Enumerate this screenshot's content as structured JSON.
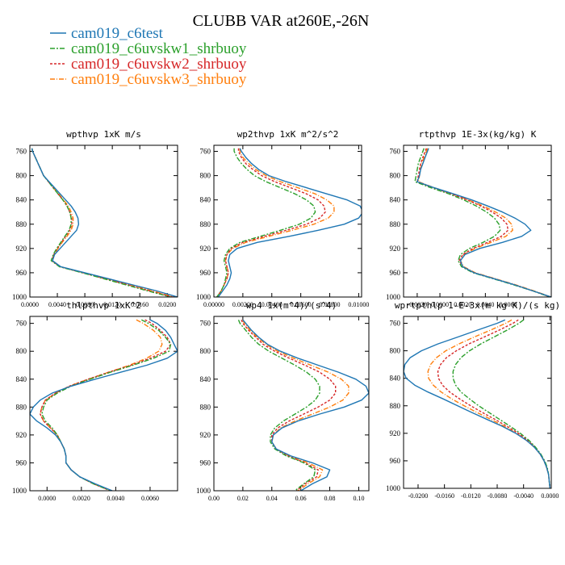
{
  "title": "CLUBB VAR at260E,-26N",
  "colors": {
    "cam019_c6test": "#1f77b4",
    "cam019_c6uvskw1_shrbuoy": "#2ca02c",
    "cam019_c6uvskw2_shrbuoy": "#d62728",
    "cam019_c6uvskw3_shrbuoy": "#ff7f0e"
  },
  "chart_data": [
    {
      "type": "line",
      "title": "wpthvp  1xK m/s",
      "ylim": [
        1000,
        750
      ],
      "y_ticks": [
        "760",
        "800",
        "840",
        "880",
        "920",
        "960",
        "1000"
      ],
      "xlim": [
        0,
        0.0215
      ],
      "x_ticks": [
        "0.0000",
        "0.0040",
        "0.0080",
        "0.0120",
        "0.0160",
        "0.0200"
      ],
      "y": [
        755,
        760,
        770,
        780,
        790,
        800,
        810,
        820,
        830,
        840,
        850,
        860,
        870,
        880,
        890,
        900,
        910,
        920,
        930,
        940,
        950,
        960,
        970,
        980,
        990,
        1000
      ],
      "series": [
        {
          "name": "cam019_c6test",
          "values": [
            0.0003,
            0.0004,
            0.0008,
            0.0012,
            0.0016,
            0.002,
            0.0028,
            0.0036,
            0.0044,
            0.0052,
            0.006,
            0.0066,
            0.007,
            0.0071,
            0.0068,
            0.006,
            0.0052,
            0.0044,
            0.0036,
            0.0033,
            0.0045,
            0.008,
            0.0115,
            0.015,
            0.0185,
            0.0215
          ]
        },
        {
          "name": "cam019_c6uvskw1_shrbuoy",
          "values": [
            0.0003,
            0.0004,
            0.0008,
            0.0012,
            0.0016,
            0.002,
            0.0027,
            0.0034,
            0.0041,
            0.0048,
            0.0054,
            0.0058,
            0.006,
            0.006,
            0.0057,
            0.0051,
            0.0045,
            0.0039,
            0.0034,
            0.0031,
            0.0043,
            0.0076,
            0.0108,
            0.014,
            0.0172,
            0.0205
          ]
        },
        {
          "name": "cam019_c6uvskw2_shrbuoy",
          "values": [
            0.0003,
            0.0004,
            0.0008,
            0.0012,
            0.0016,
            0.002,
            0.0027,
            0.0034,
            0.0041,
            0.0048,
            0.0054,
            0.0058,
            0.0061,
            0.0061,
            0.0058,
            0.0052,
            0.0046,
            0.004,
            0.0035,
            0.0032,
            0.0044,
            0.0077,
            0.011,
            0.0143,
            0.0175,
            0.0208
          ]
        },
        {
          "name": "cam019_c6uvskw3_shrbuoy",
          "values": [
            0.0003,
            0.0004,
            0.0008,
            0.0012,
            0.0016,
            0.002,
            0.0027,
            0.0034,
            0.0042,
            0.0049,
            0.0056,
            0.006,
            0.0063,
            0.0063,
            0.006,
            0.0054,
            0.0047,
            0.0041,
            0.0035,
            0.0032,
            0.0044,
            0.0078,
            0.0112,
            0.0146,
            0.0178,
            0.021
          ]
        }
      ]
    },
    {
      "type": "line",
      "title": "wp2thvp  1xK m^2/s^2",
      "ylim": [
        1000,
        750
      ],
      "y_ticks": [
        "760",
        "800",
        "840",
        "880",
        "920",
        "960",
        "1000"
      ],
      "xlim": [
        0,
        0.0102
      ],
      "x_ticks": [
        "0.00000",
        "0.00200",
        "0.00400",
        "0.00600",
        "0.00800",
        "0.01000"
      ],
      "y": [
        755,
        760,
        770,
        780,
        790,
        800,
        810,
        820,
        830,
        840,
        850,
        860,
        870,
        880,
        890,
        900,
        910,
        920,
        930,
        940,
        950,
        960,
        970,
        980,
        990,
        1000
      ],
      "series": [
        {
          "name": "cam019_c6test",
          "values": [
            0.0018,
            0.0019,
            0.0022,
            0.0026,
            0.0031,
            0.0038,
            0.005,
            0.0064,
            0.0078,
            0.0092,
            0.0101,
            0.0103,
            0.01,
            0.009,
            0.0072,
            0.0052,
            0.003,
            0.0016,
            0.0011,
            0.001,
            0.0011,
            0.0012,
            0.0011,
            0.0009,
            0.0006,
            0.0003
          ]
        },
        {
          "name": "cam019_c6uvskw1_shrbuoy",
          "values": [
            0.0014,
            0.0014,
            0.0016,
            0.0019,
            0.0023,
            0.0028,
            0.0036,
            0.0046,
            0.0056,
            0.0064,
            0.0069,
            0.007,
            0.0067,
            0.0059,
            0.0046,
            0.0032,
            0.0018,
            0.0011,
            0.0008,
            0.0007,
            0.0008,
            0.0009,
            0.0008,
            0.0007,
            0.0005,
            0.0002
          ]
        },
        {
          "name": "cam019_c6uvskw2_shrbuoy",
          "values": [
            0.0017,
            0.0017,
            0.0019,
            0.0022,
            0.0027,
            0.0033,
            0.0042,
            0.0053,
            0.0064,
            0.0072,
            0.0076,
            0.0077,
            0.0073,
            0.0064,
            0.005,
            0.0035,
            0.002,
            0.0012,
            0.0009,
            0.0008,
            0.0009,
            0.001,
            0.0009,
            0.0007,
            0.0005,
            0.0002
          ]
        },
        {
          "name": "cam019_c6uvskw3_shrbuoy",
          "values": [
            0.0018,
            0.0018,
            0.002,
            0.0024,
            0.0029,
            0.0036,
            0.0046,
            0.0058,
            0.007,
            0.0078,
            0.0083,
            0.0083,
            0.0079,
            0.0069,
            0.0054,
            0.0038,
            0.0022,
            0.0013,
            0.0009,
            0.0008,
            0.0009,
            0.001,
            0.0009,
            0.0007,
            0.0005,
            0.0002
          ]
        }
      ]
    },
    {
      "type": "line",
      "title": "rtpthvp  1E-3x(kg/kg) K",
      "ylim": [
        1000,
        750
      ],
      "y_ticks": [
        "760",
        "800",
        "840",
        "880",
        "920",
        "960",
        "1000"
      ],
      "xlim": [
        -0.0032,
        0.0098
      ],
      "x_ticks": [
        "-0.0020",
        "0.0000",
        "0.0020",
        "0.0040",
        "0.0060"
      ],
      "y": [
        755,
        760,
        770,
        780,
        790,
        800,
        810,
        820,
        830,
        840,
        850,
        860,
        870,
        880,
        890,
        900,
        910,
        920,
        930,
        940,
        950,
        960,
        970,
        980,
        990,
        1000
      ],
      "series": [
        {
          "name": "cam019_c6test",
          "values": [
            -0.001,
            -0.0011,
            -0.0013,
            -0.0015,
            -0.0017,
            -0.0018,
            -0.002,
            -0.0005,
            0.0012,
            0.0028,
            0.0042,
            0.0055,
            0.0066,
            0.0075,
            0.008,
            0.0072,
            0.0055,
            0.0035,
            0.0022,
            0.0018,
            0.002,
            0.003,
            0.0048,
            0.0066,
            0.0082,
            0.0098
          ]
        },
        {
          "name": "cam019_c6uvskw1_shrbuoy",
          "values": [
            -0.0014,
            -0.0015,
            -0.0017,
            -0.0019,
            -0.002,
            -0.0021,
            -0.0022,
            -0.0008,
            0.0008,
            0.0021,
            0.0032,
            0.0041,
            0.0048,
            0.0052,
            0.0053,
            0.0048,
            0.0038,
            0.0026,
            0.0018,
            0.0016,
            0.0019,
            0.0029,
            0.0047,
            0.0065,
            0.0082,
            0.0097
          ]
        },
        {
          "name": "cam019_c6uvskw2_shrbuoy",
          "values": [
            -0.0012,
            -0.0013,
            -0.0015,
            -0.0017,
            -0.0018,
            -0.0019,
            -0.002,
            -0.0006,
            0.001,
            0.0024,
            0.0036,
            0.0046,
            0.0054,
            0.0059,
            0.006,
            0.0054,
            0.0042,
            0.0029,
            0.002,
            0.0017,
            0.002,
            0.003,
            0.0048,
            0.0066,
            0.0082,
            0.0097
          ]
        },
        {
          "name": "cam019_c6uvskw3_shrbuoy",
          "values": [
            -0.0011,
            -0.0012,
            -0.0014,
            -0.0016,
            -0.0017,
            -0.0018,
            -0.0019,
            -0.0005,
            0.0011,
            0.0025,
            0.0038,
            0.0049,
            0.0058,
            0.0063,
            0.0064,
            0.0058,
            0.0045,
            0.0031,
            0.0021,
            0.0018,
            0.0021,
            0.0031,
            0.0049,
            0.0067,
            0.0083,
            0.0098
          ]
        }
      ]
    },
    {
      "type": "line",
      "title": "thlpthvp  1xK^2",
      "ylim": [
        1000,
        750
      ],
      "y_ticks": [
        "760",
        "800",
        "840",
        "880",
        "920",
        "960",
        "1000"
      ],
      "xlim": [
        -0.001,
        0.0076
      ],
      "x_ticks": [
        "0.0000",
        "0.0020",
        "0.0040",
        "0.0060"
      ],
      "y": [
        755,
        760,
        770,
        780,
        790,
        800,
        810,
        820,
        830,
        840,
        850,
        860,
        870,
        880,
        890,
        900,
        910,
        920,
        930,
        940,
        950,
        960,
        970,
        980,
        990,
        1000
      ],
      "series": [
        {
          "name": "cam019_c6test",
          "values": [
            0.006,
            0.0064,
            0.0069,
            0.0072,
            0.0074,
            0.0076,
            0.007,
            0.0058,
            0.0043,
            0.0028,
            0.0014,
            0.0003,
            -0.0004,
            -0.0008,
            -0.001,
            -0.0006,
            0.0,
            0.0005,
            0.0008,
            0.001,
            0.0011,
            0.0011,
            0.0014,
            0.0019,
            0.0028,
            0.0038
          ]
        },
        {
          "name": "cam019_c6uvskw1_shrbuoy",
          "values": [
            0.0055,
            0.0059,
            0.0065,
            0.0069,
            0.0072,
            0.0071,
            0.0062,
            0.005,
            0.0037,
            0.0025,
            0.0014,
            0.0006,
            0.0,
            -0.0002,
            -0.0003,
            -0.0001,
            0.0003,
            0.0006,
            0.0008,
            0.001,
            0.0011,
            0.0011,
            0.0014,
            0.0019,
            0.0027,
            0.0037
          ]
        },
        {
          "name": "cam019_c6uvskw2_shrbuoy",
          "values": [
            0.0057,
            0.0061,
            0.0066,
            0.007,
            0.0072,
            0.0069,
            0.006,
            0.0049,
            0.0036,
            0.0024,
            0.0013,
            0.0005,
            -0.0001,
            -0.0003,
            -0.0004,
            -0.0002,
            0.0002,
            0.0006,
            0.0008,
            0.001,
            0.0011,
            0.0011,
            0.0014,
            0.0019,
            0.0027,
            0.0037
          ]
        },
        {
          "name": "cam019_c6uvskw3_shrbuoy",
          "values": [
            0.0052,
            0.0056,
            0.0062,
            0.0066,
            0.0067,
            0.0065,
            0.0058,
            0.0048,
            0.0036,
            0.0024,
            0.0013,
            0.0005,
            -0.0001,
            -0.0003,
            -0.0004,
            -0.0002,
            0.0002,
            0.0006,
            0.0008,
            0.001,
            0.0011,
            0.0011,
            0.0014,
            0.0019,
            0.0027,
            0.0037
          ]
        }
      ]
    },
    {
      "type": "line",
      "title": "wp4  1x(m^4)/(s^4)",
      "ylim": [
        1000,
        750
      ],
      "y_ticks": [
        "760",
        "800",
        "840",
        "880",
        "920",
        "960",
        "1000"
      ],
      "xlim": [
        0,
        0.107
      ],
      "x_ticks": [
        "0.00",
        "0.02",
        "0.04",
        "0.06",
        "0.08",
        "0.10"
      ],
      "y": [
        755,
        760,
        770,
        780,
        790,
        800,
        810,
        820,
        830,
        840,
        850,
        860,
        870,
        880,
        890,
        900,
        910,
        920,
        930,
        940,
        950,
        960,
        970,
        980,
        990,
        1000
      ],
      "series": [
        {
          "name": "cam019_c6test",
          "values": [
            0.02,
            0.022,
            0.026,
            0.031,
            0.037,
            0.046,
            0.058,
            0.072,
            0.086,
            0.098,
            0.105,
            0.107,
            0.102,
            0.09,
            0.073,
            0.058,
            0.047,
            0.041,
            0.04,
            0.043,
            0.053,
            0.068,
            0.08,
            0.078,
            0.068,
            0.06
          ]
        },
        {
          "name": "cam019_c6uvskw1_shrbuoy",
          "values": [
            0.017,
            0.018,
            0.022,
            0.026,
            0.031,
            0.038,
            0.047,
            0.056,
            0.064,
            0.07,
            0.073,
            0.073,
            0.07,
            0.064,
            0.056,
            0.048,
            0.042,
            0.039,
            0.039,
            0.042,
            0.05,
            0.062,
            0.07,
            0.069,
            0.062,
            0.056
          ]
        },
        {
          "name": "cam019_c6uvskw2_shrbuoy",
          "values": [
            0.019,
            0.02,
            0.024,
            0.029,
            0.034,
            0.042,
            0.052,
            0.063,
            0.073,
            0.08,
            0.084,
            0.084,
            0.08,
            0.072,
            0.062,
            0.052,
            0.044,
            0.04,
            0.04,
            0.043,
            0.051,
            0.063,
            0.072,
            0.071,
            0.063,
            0.057
          ]
        },
        {
          "name": "cam019_c6uvskw3_shrbuoy",
          "values": [
            0.02,
            0.021,
            0.025,
            0.03,
            0.036,
            0.044,
            0.055,
            0.067,
            0.079,
            0.088,
            0.093,
            0.093,
            0.089,
            0.08,
            0.068,
            0.056,
            0.046,
            0.041,
            0.04,
            0.043,
            0.052,
            0.065,
            0.075,
            0.073,
            0.065,
            0.058
          ]
        }
      ]
    },
    {
      "type": "line",
      "title": "wprtpthlp  1-E-3x(m kg K)/(s kg)",
      "ylim": [
        1000,
        750
      ],
      "y_ticks": [
        "760",
        "800",
        "840",
        "880",
        "920",
        "960",
        "1000"
      ],
      "xlim": [
        -0.0222,
        0.0002
      ],
      "x_ticks": [
        "-0.0200",
        "-0.0160",
        "-0.0120",
        "-0.0080",
        "-0.0040",
        "0.0000"
      ],
      "y": [
        755,
        760,
        770,
        780,
        790,
        800,
        810,
        820,
        830,
        840,
        850,
        860,
        870,
        880,
        890,
        900,
        910,
        920,
        930,
        940,
        950,
        960,
        970,
        980,
        990,
        1000
      ],
      "series": [
        {
          "name": "cam019_c6test",
          "values": [
            -0.0068,
            -0.008,
            -0.011,
            -0.014,
            -0.017,
            -0.0195,
            -0.0212,
            -0.022,
            -0.0222,
            -0.0218,
            -0.0205,
            -0.0185,
            -0.0162,
            -0.014,
            -0.0118,
            -0.0095,
            -0.0072,
            -0.0052,
            -0.0036,
            -0.0024,
            -0.0015,
            -0.0009,
            -0.0005,
            -0.0002,
            -0.0001,
            0.0
          ]
        },
        {
          "name": "cam019_c6uvskw1_shrbuoy",
          "values": [
            -0.004,
            -0.0047,
            -0.0065,
            -0.0085,
            -0.0105,
            -0.0122,
            -0.0135,
            -0.0143,
            -0.0147,
            -0.0147,
            -0.0143,
            -0.0135,
            -0.0122,
            -0.0108,
            -0.0092,
            -0.0076,
            -0.006,
            -0.0045,
            -0.0032,
            -0.0022,
            -0.0014,
            -0.0008,
            -0.0004,
            -0.0002,
            -0.0001,
            0.0
          ]
        },
        {
          "name": "cam019_c6uvskw2_shrbuoy",
          "values": [
            -0.0048,
            -0.0056,
            -0.0077,
            -0.01,
            -0.0123,
            -0.0142,
            -0.0157,
            -0.0166,
            -0.017,
            -0.0169,
            -0.0163,
            -0.0152,
            -0.0137,
            -0.012,
            -0.0102,
            -0.0083,
            -0.0065,
            -0.0048,
            -0.0034,
            -0.0023,
            -0.0015,
            -0.0009,
            -0.0005,
            -0.0002,
            -0.0001,
            0.0
          ]
        },
        {
          "name": "cam019_c6uvskw3_shrbuoy",
          "values": [
            -0.0058,
            -0.0067,
            -0.009,
            -0.0115,
            -0.0138,
            -0.0158,
            -0.0172,
            -0.0181,
            -0.0185,
            -0.0184,
            -0.0177,
            -0.0165,
            -0.0149,
            -0.013,
            -0.011,
            -0.0089,
            -0.0069,
            -0.0051,
            -0.0036,
            -0.0024,
            -0.0015,
            -0.0009,
            -0.0005,
            -0.0002,
            -0.0001,
            0.0
          ]
        }
      ]
    }
  ]
}
